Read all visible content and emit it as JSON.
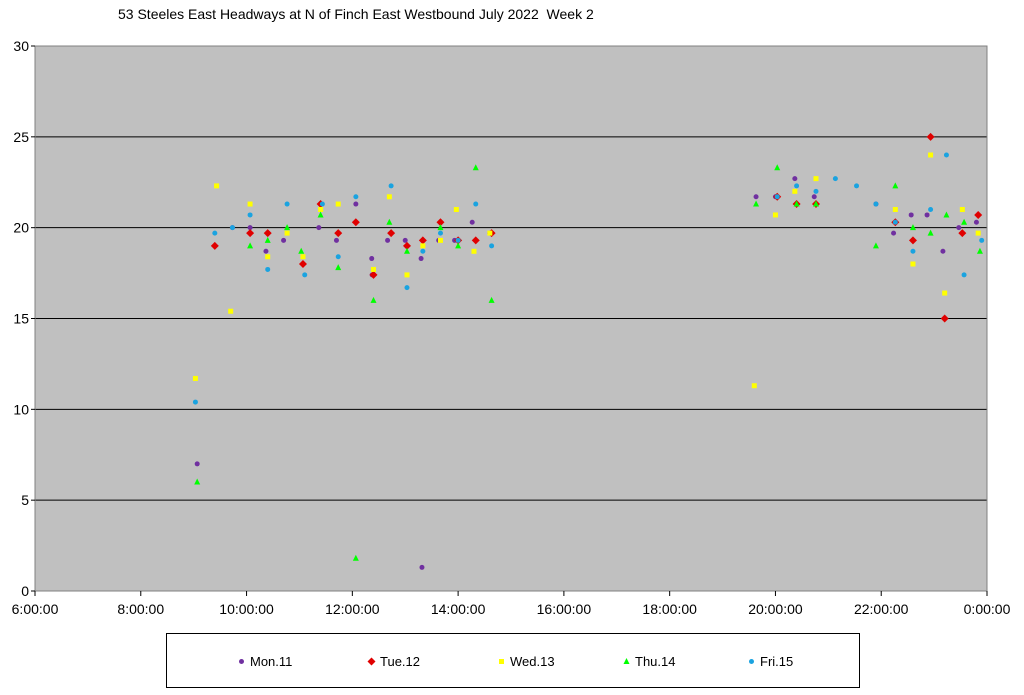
{
  "chart_data": {
    "type": "scatter",
    "title": "53 Steeles East Headways at N of Finch East Westbound July 2022  Week 2",
    "xlabel": "",
    "ylabel": "",
    "xlim": [
      "6:00:00",
      "0:00:00"
    ],
    "ylim": [
      0,
      30
    ],
    "x_ticks": [
      "6:00:00",
      "8:00:00",
      "10:00:00",
      "12:00:00",
      "14:00:00",
      "16:00:00",
      "18:00:00",
      "20:00:00",
      "22:00:00",
      "0:00:00"
    ],
    "y_ticks": [
      "0",
      "5",
      "10",
      "15",
      "20",
      "25",
      "30"
    ],
    "grid": "horizontal",
    "legend_position": "bottom",
    "plot_background": "#c0c0c0",
    "series": [
      {
        "name": "Mon.11",
        "color": "#7030a0",
        "marker": "circle",
        "points": [
          [
            "9:04:00",
            7.0
          ],
          [
            "9:44:00",
            20.0
          ],
          [
            "10:04:00",
            20.0
          ],
          [
            "10:22:00",
            18.7
          ],
          [
            "10:42:00",
            19.3
          ],
          [
            "11:22:00",
            20.0
          ],
          [
            "11:42:00",
            19.3
          ],
          [
            "12:04:00",
            21.3
          ],
          [
            "12:22:00",
            18.3
          ],
          [
            "12:22:30",
            17.4
          ],
          [
            "12:40:00",
            19.3
          ],
          [
            "13:00:00",
            19.3
          ],
          [
            "13:18:00",
            18.3
          ],
          [
            "13:19:00",
            1.3
          ],
          [
            "13:38:00",
            19.3
          ],
          [
            "13:56:00",
            19.3
          ],
          [
            "14:16:00",
            20.3
          ],
          [
            "14:36:00",
            19.7
          ],
          [
            "19:38:00",
            21.7
          ],
          [
            "20:00:00",
            21.7
          ],
          [
            "20:22:00",
            22.7
          ],
          [
            "20:44:00",
            21.7
          ],
          [
            "21:54:00",
            21.3
          ],
          [
            "22:14:00",
            19.7
          ],
          [
            "22:34:00",
            20.7
          ],
          [
            "22:52:00",
            20.7
          ],
          [
            "23:10:00",
            18.7
          ],
          [
            "23:28:00",
            20.0
          ],
          [
            "23:48:00",
            20.3
          ]
        ]
      },
      {
        "name": "Tue.12",
        "color": "#e00000",
        "marker": "diamond",
        "points": [
          [
            "9:24:00",
            19.0
          ],
          [
            "10:04:00",
            19.7
          ],
          [
            "10:24:00",
            19.7
          ],
          [
            "11:04:00",
            18.0
          ],
          [
            "11:24:00",
            21.3
          ],
          [
            "11:44:00",
            19.7
          ],
          [
            "12:04:00",
            20.3
          ],
          [
            "12:24:00",
            17.4
          ],
          [
            "12:44:00",
            19.7
          ],
          [
            "13:02:00",
            19.0
          ],
          [
            "13:20:00",
            19.3
          ],
          [
            "13:40:00",
            20.3
          ],
          [
            "14:00:00",
            19.3
          ],
          [
            "14:20:00",
            19.3
          ],
          [
            "14:38:00",
            19.7
          ],
          [
            "20:02:00",
            21.7
          ],
          [
            "20:24:00",
            21.3
          ],
          [
            "20:46:00",
            21.3
          ],
          [
            "22:16:00",
            20.3
          ],
          [
            "22:36:00",
            19.3
          ],
          [
            "22:56:00",
            25.0
          ],
          [
            "23:12:00",
            15.0
          ],
          [
            "23:32:00",
            19.7
          ],
          [
            "23:50:00",
            20.7
          ]
        ]
      },
      {
        "name": "Wed.13",
        "color": "#ffff00",
        "marker": "square",
        "points": [
          [
            "9:02:00",
            11.7
          ],
          [
            "9:26:00",
            22.3
          ],
          [
            "9:42:00",
            15.4
          ],
          [
            "10:04:00",
            21.3
          ],
          [
            "10:24:00",
            18.4
          ],
          [
            "10:46:00",
            19.7
          ],
          [
            "11:04:00",
            18.4
          ],
          [
            "11:24:00",
            21.0
          ],
          [
            "11:44:00",
            21.3
          ],
          [
            "12:24:00",
            17.7
          ],
          [
            "12:42:00",
            21.7
          ],
          [
            "13:02:00",
            17.4
          ],
          [
            "13:20:00",
            19.0
          ],
          [
            "13:40:00",
            19.3
          ],
          [
            "13:58:00",
            21.0
          ],
          [
            "14:18:00",
            18.7
          ],
          [
            "14:36:00",
            19.7
          ],
          [
            "19:36:00",
            11.3
          ],
          [
            "20:00:00",
            20.7
          ],
          [
            "20:22:00",
            22.0
          ],
          [
            "20:46:00",
            22.7
          ],
          [
            "22:16:00",
            21.0
          ],
          [
            "22:36:00",
            18.0
          ],
          [
            "22:56:00",
            24.0
          ],
          [
            "23:12:00",
            16.4
          ],
          [
            "23:32:00",
            21.0
          ],
          [
            "23:50:00",
            19.7
          ]
        ]
      },
      {
        "name": "Thu.14",
        "color": "#00ff00",
        "marker": "triangle",
        "points": [
          [
            "9:04:00",
            6.0
          ],
          [
            "10:04:00",
            19.0
          ],
          [
            "10:24:00",
            19.3
          ],
          [
            "10:46:00",
            20.0
          ],
          [
            "11:02:00",
            18.7
          ],
          [
            "11:24:00",
            20.7
          ],
          [
            "11:44:00",
            17.8
          ],
          [
            "12:04:00",
            1.8
          ],
          [
            "12:24:00",
            16.0
          ],
          [
            "12:42:00",
            20.3
          ],
          [
            "13:02:00",
            18.7
          ],
          [
            "13:40:00",
            20.0
          ],
          [
            "14:00:00",
            19.0
          ],
          [
            "14:20:00",
            23.3
          ],
          [
            "14:38:00",
            16.0
          ],
          [
            "19:38:00",
            21.3
          ],
          [
            "20:02:00",
            23.3
          ],
          [
            "20:24:00",
            21.3
          ],
          [
            "20:46:00",
            21.3
          ],
          [
            "21:54:00",
            19.0
          ],
          [
            "22:16:00",
            22.3
          ],
          [
            "22:36:00",
            20.0
          ],
          [
            "22:56:00",
            19.7
          ],
          [
            "23:14:00",
            20.7
          ],
          [
            "23:34:00",
            20.3
          ],
          [
            "23:52:00",
            18.7
          ]
        ]
      },
      {
        "name": "Fri.15",
        "color": "#1aa3e0",
        "marker": "circle",
        "points": [
          [
            "9:02:00",
            10.4
          ],
          [
            "9:24:00",
            19.7
          ],
          [
            "9:44:00",
            20.0
          ],
          [
            "10:04:00",
            20.7
          ],
          [
            "10:24:00",
            17.7
          ],
          [
            "10:46:00",
            21.3
          ],
          [
            "11:06:00",
            17.4
          ],
          [
            "11:26:00",
            21.3
          ],
          [
            "11:44:00",
            18.4
          ],
          [
            "12:04:00",
            21.7
          ],
          [
            "12:44:00",
            22.3
          ],
          [
            "13:02:00",
            16.7
          ],
          [
            "13:20:00",
            18.7
          ],
          [
            "13:40:00",
            19.7
          ],
          [
            "14:00:00",
            19.3
          ],
          [
            "14:20:00",
            21.3
          ],
          [
            "14:38:00",
            19.0
          ],
          [
            "20:02:00",
            21.7
          ],
          [
            "20:24:00",
            22.3
          ],
          [
            "20:46:00",
            22.0
          ],
          [
            "21:08:00",
            22.7
          ],
          [
            "21:32:00",
            22.3
          ],
          [
            "21:54:00",
            21.3
          ],
          [
            "22:16:00",
            20.3
          ],
          [
            "22:36:00",
            18.7
          ],
          [
            "22:56:00",
            21.0
          ],
          [
            "23:14:00",
            24.0
          ],
          [
            "23:34:00",
            17.4
          ],
          [
            "23:54:00",
            19.3
          ]
        ]
      }
    ]
  }
}
